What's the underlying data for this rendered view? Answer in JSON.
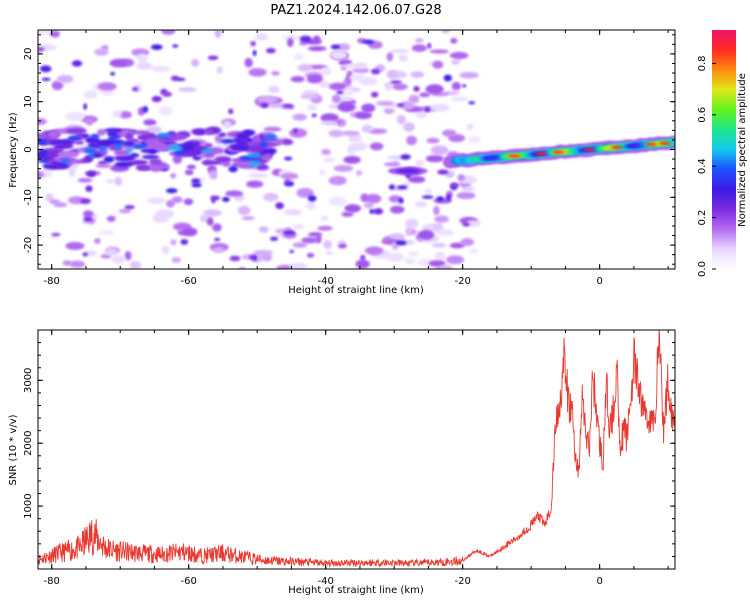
{
  "title": "PAZ1.2024.142.06.07.G28",
  "colors": {
    "snr_line": "#e8382f",
    "colormap": [
      "#ffffff",
      "#e7d6ff",
      "#b56cf0",
      "#7a2ce0",
      "#3c1ae6",
      "#1e50ff",
      "#12c8f0",
      "#1ee68a",
      "#62f21c",
      "#dfe81a",
      "#ff8a10",
      "#ff2a22",
      "#f0146e"
    ]
  },
  "chart_data": [
    {
      "type": "heatmap",
      "title": "PAZ1.2024.142.06.07.G28",
      "xlabel": "Height of straight line (km)",
      "ylabel": "Frequency (Hz)",
      "xlim": [
        -82,
        11
      ],
      "ylim": [
        -25,
        25
      ],
      "xticks": [
        -80,
        -60,
        -40,
        -20,
        0
      ],
      "yticks": [
        -20,
        -10,
        0,
        10,
        20
      ],
      "colorbar": {
        "label": "Normalized spectral amplitude",
        "range": [
          0,
          0.93
        ],
        "ticks": [
          0.0,
          0.2,
          0.4,
          0.6,
          0.8
        ]
      },
      "features": [
        {
          "segment": "upper-left band",
          "x": [
            -82,
            -48
          ],
          "freq_center_hz": 0,
          "peak_amplitude": 0.45
        },
        {
          "segment": "narrow tone near -28 km",
          "x": [
            -31,
            -25
          ],
          "freq_center_hz": -4.5,
          "peak_amplitude": 0.3
        },
        {
          "segment": "line-of-sight tone",
          "x": [
            -22,
            11
          ],
          "freq_center_hz_start": -2.5,
          "freq_center_hz_end": 1.5,
          "peak_amplitude": 0.93
        }
      ]
    },
    {
      "type": "line",
      "xlabel": "Height of straight line (km)",
      "ylabel": "SNR (10 * v/v)",
      "xlim": [
        -82,
        11
      ],
      "ylim": [
        0,
        3800
      ],
      "xticks": [
        -80,
        -60,
        -40,
        -20,
        0
      ],
      "yticks": [
        1000,
        2000,
        3000
      ],
      "series": [
        {
          "x": [
            -82,
            -79,
            -76,
            -74,
            -72,
            -70,
            -67,
            -64,
            -61,
            -58,
            -55,
            -52,
            -49,
            -46,
            -43,
            -40,
            -37,
            -34,
            -31,
            -28,
            -25,
            -22,
            -20,
            -18,
            -16,
            -14,
            -12,
            -10,
            -9,
            -8,
            -7,
            -6.5,
            -6,
            -5.2,
            -4.5,
            -4,
            -3.5,
            -3,
            -2.5,
            -2,
            -1.5,
            -1,
            0,
            0.5,
            1,
            1.5,
            2,
            2.5,
            3,
            3.5,
            4,
            5,
            6,
            7,
            8,
            8.7,
            9.3,
            10,
            10.5,
            11
          ],
          "y": [
            150,
            250,
            330,
            560,
            320,
            280,
            250,
            230,
            270,
            210,
            250,
            190,
            140,
            120,
            110,
            90,
            100,
            100,
            100,
            90,
            100,
            120,
            130,
            300,
            200,
            350,
            500,
            700,
            850,
            700,
            1000,
            2300,
            2500,
            3300,
            2600,
            2500,
            1700,
            1600,
            2800,
            2100,
            1900,
            3100,
            2000,
            1700,
            2900,
            2200,
            2500,
            3200,
            1950,
            2200,
            2100,
            3300,
            2700,
            2400,
            2300,
            3800,
            2200,
            3000,
            2500,
            2300
          ]
        }
      ]
    }
  ]
}
